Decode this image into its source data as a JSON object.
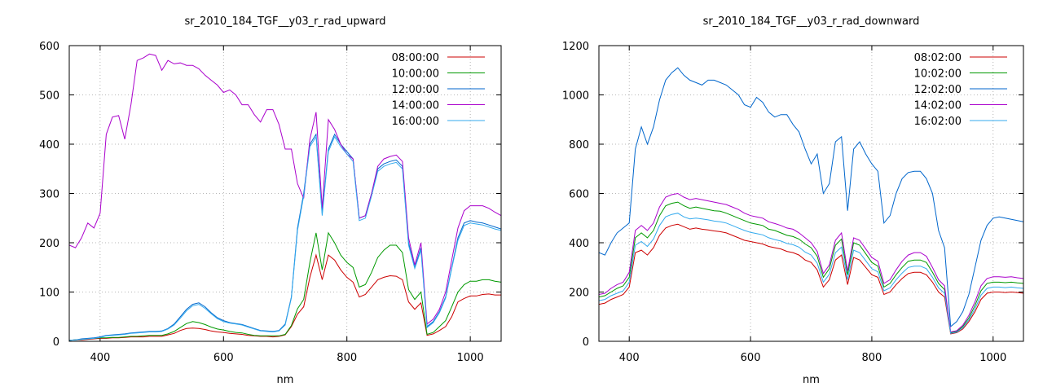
{
  "chart_data": [
    {
      "type": "line",
      "title": "sr_2010_184_TGF__y03_r_rad_upward",
      "xlabel": "nm",
      "ylabel": "",
      "xlim": [
        350,
        1050
      ],
      "ylim": [
        0,
        600
      ],
      "xticks": [
        400,
        600,
        800,
        1000
      ],
      "yticks": [
        0,
        100,
        200,
        300,
        400,
        500,
        600
      ],
      "grid": true,
      "legend_position": "top-right",
      "x": [
        350,
        360,
        370,
        380,
        390,
        400,
        410,
        420,
        430,
        440,
        450,
        460,
        470,
        480,
        490,
        500,
        510,
        520,
        530,
        540,
        550,
        560,
        570,
        580,
        590,
        600,
        610,
        620,
        630,
        640,
        650,
        660,
        670,
        680,
        690,
        700,
        710,
        720,
        730,
        740,
        750,
        760,
        770,
        780,
        790,
        800,
        810,
        820,
        830,
        840,
        850,
        860,
        870,
        880,
        890,
        900,
        910,
        920,
        930,
        940,
        950,
        960,
        970,
        980,
        990,
        1000,
        1010,
        1020,
        1030,
        1040,
        1050
      ],
      "series": [
        {
          "name": "08:00:00",
          "color": "#cc0000",
          "values": [
            2,
            3,
            3,
            4,
            5,
            6,
            6,
            7,
            7,
            8,
            9,
            9,
            9,
            10,
            10,
            10,
            13,
            16,
            22,
            26,
            27,
            26,
            24,
            21,
            19,
            18,
            16,
            15,
            14,
            12,
            11,
            10,
            10,
            9,
            10,
            13,
            30,
            55,
            70,
            130,
            175,
            125,
            175,
            165,
            145,
            130,
            120,
            90,
            95,
            110,
            125,
            130,
            133,
            132,
            125,
            80,
            65,
            78,
            12,
            15,
            22,
            30,
            50,
            80,
            87,
            92,
            92,
            95,
            96,
            94,
            94
          ]
        },
        {
          "name": "10:00:00",
          "color": "#009900",
          "values": [
            2,
            3,
            4,
            5,
            6,
            7,
            7,
            8,
            8,
            9,
            10,
            10,
            11,
            12,
            12,
            12,
            15,
            20,
            28,
            36,
            40,
            38,
            34,
            29,
            25,
            23,
            20,
            18,
            17,
            14,
            12,
            11,
            11,
            11,
            11,
            14,
            32,
            66,
            85,
            160,
            220,
            145,
            220,
            200,
            175,
            160,
            150,
            110,
            115,
            140,
            170,
            185,
            195,
            195,
            180,
            105,
            85,
            100,
            14,
            18,
            30,
            42,
            70,
            100,
            115,
            122,
            122,
            125,
            125,
            122,
            120
          ]
        },
        {
          "name": "12:00:00",
          "color": "#0066cc",
          "values": [
            2,
            3,
            5,
            6,
            7,
            9,
            12,
            13,
            14,
            15,
            17,
            18,
            19,
            20,
            20,
            21,
            26,
            35,
            50,
            65,
            75,
            78,
            70,
            58,
            48,
            42,
            38,
            36,
            34,
            30,
            26,
            22,
            21,
            20,
            22,
            35,
            90,
            230,
            300,
            400,
            420,
            260,
            390,
            420,
            400,
            385,
            370,
            250,
            255,
            300,
            350,
            360,
            365,
            368,
            355,
            200,
            150,
            190,
            30,
            40,
            60,
            90,
            150,
            210,
            240,
            245,
            242,
            240,
            236,
            232,
            228
          ]
        },
        {
          "name": "14:00:00",
          "color": "#aa00cc",
          "values": [
            195,
            190,
            210,
            240,
            230,
            260,
            420,
            455,
            458,
            410,
            480,
            570,
            575,
            583,
            580,
            550,
            570,
            563,
            565,
            560,
            560,
            553,
            540,
            530,
            520,
            505,
            510,
            500,
            480,
            480,
            460,
            445,
            470,
            470,
            440,
            390,
            390,
            320,
            290,
            410,
            465,
            270,
            450,
            430,
            400,
            380,
            370,
            250,
            255,
            300,
            355,
            370,
            375,
            378,
            365,
            210,
            155,
            200,
            35,
            45,
            65,
            100,
            165,
            230,
            265,
            275,
            275,
            275,
            270,
            262,
            255
          ]
        },
        {
          "name": "16:00:00",
          "color": "#33aaee",
          "values": [
            2,
            3,
            4,
            5,
            6,
            8,
            11,
            12,
            13,
            14,
            16,
            17,
            18,
            19,
            19,
            20,
            25,
            33,
            47,
            62,
            72,
            75,
            67,
            56,
            46,
            40,
            37,
            35,
            33,
            29,
            25,
            21,
            20,
            19,
            21,
            33,
            88,
            225,
            295,
            395,
            415,
            255,
            385,
            415,
            395,
            380,
            365,
            245,
            250,
            295,
            345,
            355,
            360,
            363,
            350,
            195,
            148,
            185,
            28,
            38,
            58,
            88,
            148,
            205,
            235,
            240,
            238,
            236,
            232,
            228,
            225
          ]
        }
      ]
    },
    {
      "type": "line",
      "title": "sr_2010_184_TGF__y03_r_rad_downward",
      "xlabel": "nm",
      "ylabel": "",
      "xlim": [
        350,
        1050
      ],
      "ylim": [
        0,
        1200
      ],
      "xticks": [
        400,
        600,
        800,
        1000
      ],
      "yticks": [
        0,
        200,
        400,
        600,
        800,
        1000,
        1200
      ],
      "grid": true,
      "legend_position": "top-right",
      "x": [
        350,
        360,
        370,
        380,
        390,
        400,
        410,
        420,
        430,
        440,
        450,
        460,
        470,
        480,
        490,
        500,
        510,
        520,
        530,
        540,
        550,
        560,
        570,
        580,
        590,
        600,
        610,
        620,
        630,
        640,
        650,
        660,
        670,
        680,
        690,
        700,
        710,
        720,
        730,
        740,
        750,
        760,
        770,
        780,
        790,
        800,
        810,
        820,
        830,
        840,
        850,
        860,
        870,
        880,
        890,
        900,
        910,
        920,
        930,
        940,
        950,
        960,
        970,
        980,
        990,
        1000,
        1010,
        1020,
        1030,
        1040,
        1050
      ],
      "series": [
        {
          "name": "08:02:00",
          "color": "#cc0000",
          "values": [
            150,
            155,
            170,
            180,
            190,
            220,
            360,
            370,
            350,
            380,
            430,
            460,
            470,
            475,
            465,
            455,
            460,
            455,
            452,
            448,
            445,
            440,
            430,
            420,
            410,
            405,
            400,
            395,
            385,
            380,
            375,
            365,
            360,
            350,
            330,
            320,
            290,
            220,
            250,
            330,
            350,
            230,
            340,
            330,
            300,
            270,
            260,
            190,
            200,
            230,
            255,
            275,
            280,
            280,
            270,
            240,
            200,
            180,
            30,
            35,
            50,
            80,
            120,
            170,
            195,
            200,
            200,
            198,
            200,
            198,
            195
          ]
        },
        {
          "name": "10:02:00",
          "color": "#009900",
          "values": [
            180,
            185,
            200,
            215,
            225,
            260,
            420,
            440,
            420,
            450,
            510,
            550,
            560,
            565,
            550,
            540,
            545,
            540,
            535,
            530,
            528,
            520,
            510,
            500,
            490,
            480,
            475,
            470,
            455,
            450,
            440,
            430,
            425,
            415,
            395,
            380,
            345,
            260,
            295,
            390,
            415,
            270,
            400,
            390,
            355,
            320,
            305,
            220,
            235,
            270,
            300,
            325,
            330,
            330,
            320,
            280,
            235,
            210,
            35,
            40,
            60,
            95,
            145,
            205,
            235,
            240,
            240,
            238,
            240,
            237,
            235
          ]
        },
        {
          "name": "12:02:00",
          "color": "#0066cc",
          "values": [
            360,
            350,
            400,
            440,
            460,
            480,
            780,
            870,
            800,
            870,
            980,
            1060,
            1090,
            1110,
            1080,
            1060,
            1050,
            1040,
            1060,
            1060,
            1050,
            1040,
            1020,
            1000,
            960,
            950,
            990,
            970,
            930,
            910,
            920,
            920,
            880,
            850,
            780,
            720,
            760,
            600,
            640,
            810,
            830,
            530,
            780,
            810,
            760,
            720,
            690,
            480,
            510,
            600,
            660,
            685,
            690,
            690,
            660,
            600,
            450,
            380,
            60,
            80,
            120,
            190,
            300,
            410,
            470,
            500,
            505,
            500,
            495,
            490,
            485
          ]
        },
        {
          "name": "14:02:00",
          "color": "#aa00cc",
          "values": [
            190,
            195,
            215,
            230,
            240,
            280,
            450,
            470,
            450,
            480,
            545,
            585,
            595,
            600,
            585,
            575,
            580,
            575,
            570,
            565,
            560,
            555,
            545,
            535,
            520,
            510,
            505,
            500,
            485,
            478,
            470,
            460,
            455,
            440,
            420,
            400,
            365,
            275,
            310,
            410,
            440,
            285,
            420,
            410,
            375,
            340,
            325,
            235,
            250,
            290,
            325,
            350,
            360,
            360,
            345,
            300,
            250,
            225,
            38,
            43,
            65,
            105,
            160,
            225,
            255,
            262,
            262,
            260,
            262,
            258,
            255
          ]
        },
        {
          "name": "16:02:00",
          "color": "#33aaee",
          "values": [
            165,
            170,
            185,
            195,
            205,
            240,
            390,
            405,
            385,
            415,
            470,
            505,
            515,
            520,
            505,
            497,
            500,
            497,
            493,
            488,
            485,
            480,
            470,
            460,
            450,
            442,
            437,
            432,
            420,
            413,
            407,
            397,
            392,
            382,
            362,
            350,
            317,
            240,
            272,
            360,
            382,
            250,
            370,
            360,
            327,
            295,
            282,
            205,
            217,
            250,
            277,
            300,
            305,
            305,
            295,
            260,
            217,
            195,
            32,
            37,
            55,
            87,
            132,
            187,
            215,
            220,
            220,
            218,
            220,
            217,
            215
          ]
        }
      ]
    }
  ]
}
